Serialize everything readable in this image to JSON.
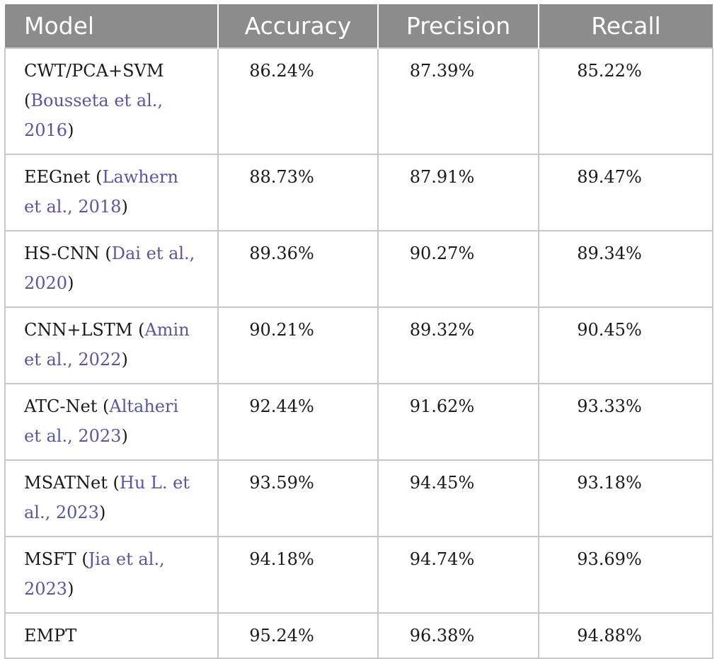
{
  "table": {
    "headers": {
      "model": "Model",
      "accuracy": "Accuracy",
      "precision": "Precision",
      "recall": "Recall"
    },
    "rows": [
      {
        "model": "CWT/PCA+SVM",
        "open": " (",
        "cite": "Bousseta et al., 2016",
        "close": ")",
        "accuracy": "86.24%",
        "precision": "87.39%",
        "recall": "85.22%"
      },
      {
        "model": "EEGnet",
        "open": " (",
        "cite": "Lawhern et al., 2018",
        "close": ")",
        "accuracy": "88.73%",
        "precision": "87.91%",
        "recall": "89.47%"
      },
      {
        "model": "HS-CNN",
        "open": " (",
        "cite": "Dai et al., 2020",
        "close": ")",
        "accuracy": "89.36%",
        "precision": "90.27%",
        "recall": "89.34%"
      },
      {
        "model": "CNN+LSTM",
        "open": " (",
        "cite": "Amin et al., 2022",
        "close": ")",
        "accuracy": "90.21%",
        "precision": "89.32%",
        "recall": "90.45%"
      },
      {
        "model": "ATC-Net",
        "open": " (",
        "cite": "Altaheri et al., 2023",
        "close": ")",
        "accuracy": "92.44%",
        "precision": "91.62%",
        "recall": "93.33%"
      },
      {
        "model": "MSATNet",
        "open": " (",
        "cite": "Hu L. et al., 2023",
        "close": ")",
        "accuracy": "93.59%",
        "precision": "94.45%",
        "recall": "93.18%"
      },
      {
        "model": "MSFT",
        "open": " (",
        "cite": "Jia et al., 2023",
        "close": ")",
        "accuracy": "94.18%",
        "precision": "94.74%",
        "recall": "93.69%"
      },
      {
        "model": "EMPT",
        "open": "",
        "cite": "",
        "close": "",
        "accuracy": "95.24%",
        "precision": "96.38%",
        "recall": "94.88%"
      }
    ],
    "colors": {
      "header_bg": "#8c8c8c",
      "header_text": "#ffffff",
      "grid": "#c8c8c8",
      "citation_link": "#5a55a3"
    }
  }
}
